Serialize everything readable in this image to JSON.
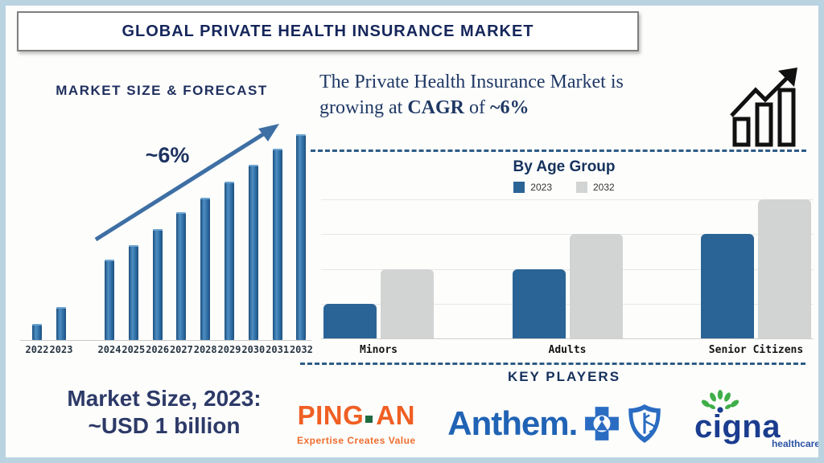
{
  "title": "GLOBAL PRIVATE HEALTH INSURANCE MARKET",
  "cagr_note": {
    "line1": "The Private Health Insurance Market is",
    "line2_prefix": "growing at ",
    "line2_bold1": "CAGR",
    "line2_mid": " of ",
    "line2_bold2": "~6%"
  },
  "key_players": {
    "heading": "KEY PLAYERS",
    "ping_an": {
      "wordmark_1": "PING",
      "wordmark_2": "AN",
      "tagline": "Expertise Creates Value",
      "orange": "#f05f24",
      "green": "#1e6b40"
    },
    "anthem": {
      "wordmark": "Anthem.",
      "blue": "#2063b5"
    },
    "cigna": {
      "wordmark": "cigna",
      "subtext": "healthcare",
      "blue": "#1b3d8f",
      "green": "#3fae49"
    }
  },
  "market_size": {
    "line1": "Market Size, 2023:",
    "line2": "~USD 1 billion"
  },
  "colors": {
    "navy_text": "#1f2f5e",
    "forecast_bar_blue": "#2e6da4",
    "age_bar_blue": "#2a6496",
    "age_bar_gray": "#d2d4d4",
    "arrow_blue": "#3e6fa4",
    "dashed_divider": "#2e5b86",
    "frame_blue": "#b9d3e1"
  },
  "chart_data": [
    {
      "type": "bar",
      "title": "MARKET SIZE & FORECAST",
      "categories": [
        "2022",
        "2023",
        "2024",
        "2025",
        "2026",
        "2027",
        "2028",
        "2029",
        "2030",
        "2031",
        "2032"
      ],
      "values": [
        8,
        16,
        39,
        46,
        54,
        62,
        69,
        77,
        85,
        93,
        100
      ],
      "values_note": "relative bar heights as % of 2032 bar; y-axis unlabeled",
      "annotation": "~6%",
      "xlabel": "",
      "ylabel": "",
      "ylim": [
        0,
        100
      ],
      "grid": false,
      "bar_color": "#2e6da4",
      "layout_note": "visible gap between 2023 and 2024 bars; rising trend arrow overlay"
    },
    {
      "type": "bar",
      "title": "By Age Group",
      "categories": [
        "Minors",
        "Adults",
        "Senior Citizens"
      ],
      "series": [
        {
          "name": "2023",
          "color": "#2a6496",
          "values": [
            1,
            2,
            3
          ]
        },
        {
          "name": "2032",
          "color": "#d2d4d4",
          "values": [
            2,
            3,
            4
          ]
        }
      ],
      "values_note": "relative units read from gridlines; y-axis unlabeled",
      "ylim": [
        0,
        4
      ],
      "grid": true,
      "legend_position": "top"
    }
  ]
}
